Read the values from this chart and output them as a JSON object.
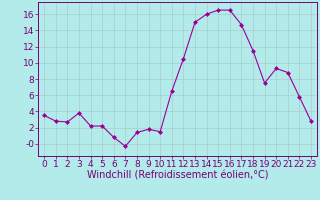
{
  "x": [
    0,
    1,
    2,
    3,
    4,
    5,
    6,
    7,
    8,
    9,
    10,
    11,
    12,
    13,
    14,
    15,
    16,
    17,
    18,
    19,
    20,
    21,
    22,
    23
  ],
  "y": [
    3.5,
    2.8,
    2.7,
    3.8,
    2.2,
    2.2,
    0.8,
    -0.3,
    1.4,
    1.8,
    1.5,
    6.5,
    10.5,
    15.0,
    16.0,
    16.5,
    16.5,
    14.7,
    11.5,
    7.5,
    9.3,
    8.8,
    5.8,
    2.8
  ],
  "line_color": "#990099",
  "marker": "D",
  "marker_size": 2,
  "bg_color": "#b3ebeb",
  "grid_color": "#aacccc",
  "xlabel": "Windchill (Refroidissement éolien,°C)",
  "xlim": [
    -0.5,
    23.5
  ],
  "ylim": [
    -1.5,
    17.5
  ],
  "yticks": [
    0,
    2,
    4,
    6,
    8,
    10,
    12,
    14,
    16
  ],
  "ytick_labels": [
    "-0",
    "2",
    "4",
    "6",
    "8",
    "10",
    "12",
    "14",
    "16"
  ],
  "xticks": [
    0,
    1,
    2,
    3,
    4,
    5,
    6,
    7,
    8,
    9,
    10,
    11,
    12,
    13,
    14,
    15,
    16,
    17,
    18,
    19,
    20,
    21,
    22,
    23
  ],
  "label_color": "#770077",
  "tick_fontsize": 6.5,
  "xlabel_fontsize": 7.0
}
